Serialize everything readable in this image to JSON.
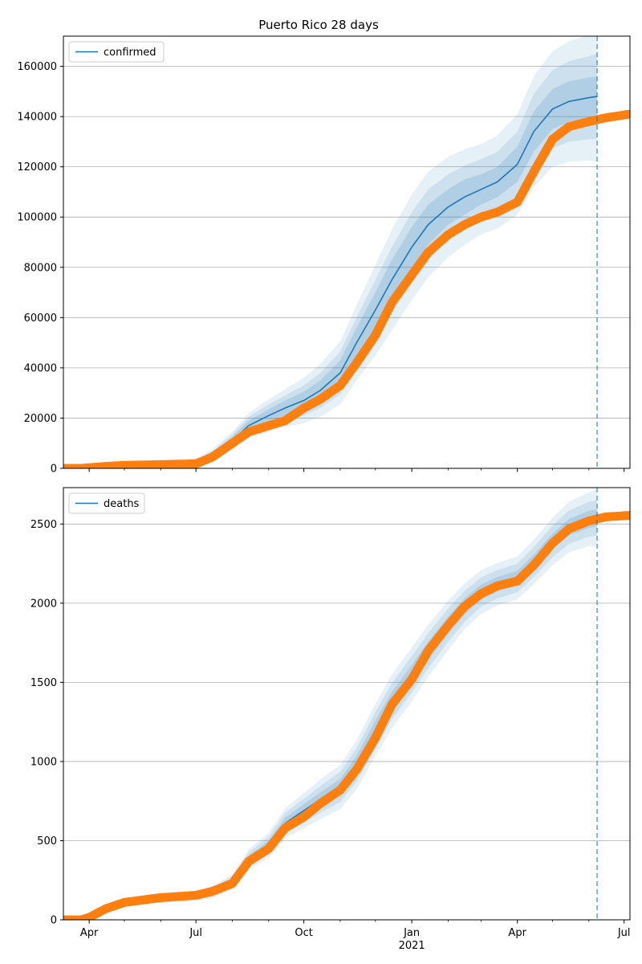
{
  "chart_data": {
    "type": "line",
    "title": "Puerto Rico 28 days",
    "colors": {
      "model": "#1f77b4",
      "observed": "#ff7f0e",
      "grid": "#b0b0b0"
    },
    "x_range": [
      "2020-03-10",
      "2021-07-06"
    ],
    "x_ticks_major": [
      {
        "date": "2020-04-01",
        "label": "Apr",
        "sublabel": ""
      },
      {
        "date": "2020-07-01",
        "label": "Jul",
        "sublabel": ""
      },
      {
        "date": "2020-10-01",
        "label": "Oct",
        "sublabel": ""
      },
      {
        "date": "2021-01-01",
        "label": "Jan",
        "sublabel": "2021"
      },
      {
        "date": "2021-04-01",
        "label": "Apr",
        "sublabel": ""
      },
      {
        "date": "2021-07-01",
        "label": "Jul",
        "sublabel": ""
      }
    ],
    "x_ticks_minor": [
      "2020-05-01",
      "2020-06-01",
      "2020-08-01",
      "2020-09-01",
      "2020-11-01",
      "2020-12-01",
      "2021-02-01",
      "2021-03-01",
      "2021-05-01",
      "2021-06-01"
    ],
    "forecast_start": "2021-06-08",
    "panels": [
      {
        "name": "confirmed",
        "legend": "confirmed",
        "legend_position": "upper-left",
        "ylim": [
          0,
          172000
        ],
        "yticks": [
          0,
          20000,
          40000,
          60000,
          80000,
          100000,
          120000,
          140000,
          160000
        ],
        "model": {
          "x": [
            "2020-03-10",
            "2020-04-01",
            "2020-05-01",
            "2020-06-01",
            "2020-07-01",
            "2020-07-15",
            "2020-08-01",
            "2020-08-15",
            "2020-09-01",
            "2020-09-15",
            "2020-10-01",
            "2020-10-15",
            "2020-11-01",
            "2020-11-15",
            "2020-12-01",
            "2020-12-15",
            "2021-01-01",
            "2021-01-15",
            "2021-02-01",
            "2021-02-15",
            "2021-03-01",
            "2021-03-15",
            "2021-04-01",
            "2021-04-15",
            "2021-05-01",
            "2021-05-15",
            "2021-06-01",
            "2021-06-08"
          ],
          "y": [
            0,
            800,
            1500,
            1800,
            2200,
            5000,
            11000,
            17000,
            21000,
            24000,
            27000,
            31000,
            38000,
            50000,
            63000,
            75000,
            88000,
            97000,
            104000,
            108000,
            111000,
            114000,
            121000,
            134000,
            143000,
            146000,
            147500,
            148000
          ],
          "band_inner": [
            0,
            300,
            500,
            600,
            700,
            1000,
            1500,
            2000,
            2500,
            3000,
            3500,
            4000,
            5000,
            6000,
            7000,
            8000,
            8000,
            8000,
            7000,
            7000,
            6000,
            6000,
            7000,
            8000,
            8000,
            8000,
            8000,
            8000
          ],
          "band_mid": [
            0,
            500,
            800,
            1000,
            1200,
            1800,
            2500,
            3500,
            4500,
            5000,
            6000,
            7000,
            8500,
            10000,
            12000,
            13000,
            14000,
            14000,
            13000,
            12500,
            12000,
            12000,
            13000,
            15000,
            15500,
            16000,
            16500,
            17000
          ],
          "band_outer": [
            0,
            800,
            1200,
            1500,
            1800,
            2500,
            3500,
            5000,
            6500,
            7500,
            9000,
            10500,
            12500,
            15000,
            18000,
            20000,
            21000,
            21000,
            20000,
            19000,
            18000,
            18500,
            20000,
            22000,
            23000,
            24000,
            25000,
            26000
          ]
        },
        "observed": {
          "x": [
            "2020-03-10",
            "2020-03-25",
            "2020-04-15",
            "2020-05-01",
            "2020-06-01",
            "2020-07-01",
            "2020-07-15",
            "2020-08-01",
            "2020-08-15",
            "2020-09-01",
            "2020-09-15",
            "2020-10-01",
            "2020-10-15",
            "2020-11-01",
            "2020-11-15",
            "2020-12-01",
            "2020-12-15",
            "2021-01-01",
            "2021-01-15",
            "2021-02-01",
            "2021-02-15",
            "2021-03-01",
            "2021-03-15",
            "2021-04-01",
            "2021-04-15",
            "2021-05-01",
            "2021-05-15",
            "2021-06-01",
            "2021-06-15",
            "2021-07-06"
          ],
          "y": [
            0,
            0,
            800,
            1200,
            1500,
            1800,
            4500,
            10000,
            14500,
            17000,
            19000,
            24000,
            27500,
            33000,
            42000,
            53000,
            66000,
            77000,
            86000,
            93000,
            97000,
            100000,
            102000,
            106000,
            118000,
            131000,
            136000,
            138000,
            139500,
            141000
          ]
        }
      },
      {
        "name": "deaths",
        "legend": "deaths",
        "legend_position": "upper-left",
        "ylim": [
          0,
          2730
        ],
        "yticks": [
          0,
          500,
          1000,
          1500,
          2000,
          2500
        ],
        "model": {
          "x": [
            "2020-03-10",
            "2020-03-25",
            "2020-04-15",
            "2020-05-01",
            "2020-06-01",
            "2020-07-01",
            "2020-07-15",
            "2020-08-01",
            "2020-08-15",
            "2020-09-01",
            "2020-09-15",
            "2020-10-01",
            "2020-10-15",
            "2020-11-01",
            "2020-11-15",
            "2020-12-01",
            "2020-12-15",
            "2021-01-01",
            "2021-01-15",
            "2021-02-01",
            "2021-02-15",
            "2021-03-01",
            "2021-03-15",
            "2021-04-01",
            "2021-04-15",
            "2021-05-01",
            "2021-05-15",
            "2021-06-01",
            "2021-06-08"
          ],
          "y": [
            0,
            0,
            60,
            110,
            140,
            150,
            175,
            240,
            380,
            470,
            610,
            690,
            760,
            840,
            980,
            1200,
            1380,
            1550,
            1700,
            1860,
            1980,
            2070,
            2120,
            2160,
            2260,
            2390,
            2480,
            2530,
            2540
          ],
          "band_inner": [
            0,
            2,
            8,
            10,
            12,
            12,
            14,
            18,
            25,
            30,
            35,
            40,
            45,
            50,
            55,
            60,
            60,
            60,
            58,
            55,
            50,
            48,
            45,
            45,
            48,
            50,
            52,
            55,
            55
          ],
          "band_mid": [
            0,
            4,
            15,
            20,
            22,
            22,
            26,
            34,
            45,
            55,
            65,
            75,
            85,
            95,
            105,
            112,
            115,
            115,
            110,
            105,
            98,
            92,
            90,
            90,
            95,
            100,
            105,
            110,
            112
          ],
          "band_outer": [
            0,
            6,
            22,
            28,
            32,
            32,
            38,
            48,
            65,
            80,
            95,
            110,
            125,
            140,
            155,
            165,
            170,
            170,
            165,
            155,
            145,
            138,
            135,
            135,
            140,
            150,
            160,
            170,
            180
          ]
        },
        "observed": {
          "x": [
            "2020-03-10",
            "2020-03-25",
            "2020-04-01",
            "2020-04-15",
            "2020-05-01",
            "2020-06-01",
            "2020-07-01",
            "2020-07-15",
            "2020-08-01",
            "2020-08-15",
            "2020-09-01",
            "2020-09-15",
            "2020-10-01",
            "2020-10-15",
            "2020-11-01",
            "2020-11-15",
            "2020-12-01",
            "2020-12-15",
            "2021-01-01",
            "2021-01-15",
            "2021-02-01",
            "2021-02-15",
            "2021-03-01",
            "2021-03-15",
            "2021-04-01",
            "2021-04-15",
            "2021-05-01",
            "2021-05-15",
            "2021-06-01",
            "2021-06-15",
            "2021-07-06"
          ],
          "y": [
            0,
            0,
            15,
            70,
            110,
            140,
            155,
            180,
            230,
            370,
            450,
            580,
            650,
            735,
            820,
            950,
            1150,
            1360,
            1520,
            1700,
            1860,
            1980,
            2060,
            2110,
            2140,
            2240,
            2380,
            2470,
            2520,
            2545,
            2555
          ]
        }
      }
    ]
  }
}
